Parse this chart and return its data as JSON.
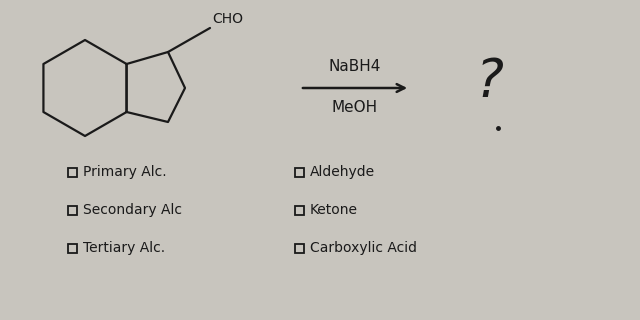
{
  "bg_color": "#c8c5be",
  "text_color": "#1a1a1a",
  "reagent_top": "NaBH4",
  "reagent_bottom": "MeOH",
  "cho_label": "CHO",
  "question_mark": "?",
  "left_options": [
    "Primary Alc.",
    "Secondary Alc",
    "Tertiary Alc."
  ],
  "right_options": [
    "Aldehyde",
    "Ketone",
    "Carboxylic Acid"
  ],
  "font_family": "DejaVu Serif"
}
